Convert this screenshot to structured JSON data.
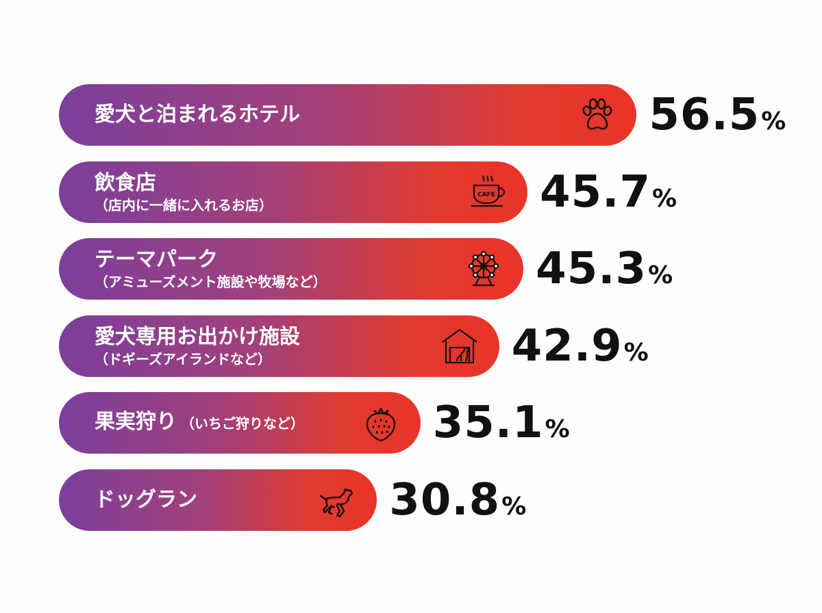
{
  "chart_data": {
    "type": "bar",
    "orientation": "horizontal",
    "unit": "%",
    "categories": [
      {
        "label": "愛犬と泊まれるホテル",
        "sub": "",
        "icon": "paw-icon",
        "value": 56.5
      },
      {
        "label": "飲食店",
        "sub": "（店内に一緒に入れるお店）",
        "icon": "cafe-cup-icon",
        "value": 45.7
      },
      {
        "label": "テーマパーク",
        "sub": "（アミューズメント施設や牧場など）",
        "icon": "ferris-wheel-icon",
        "value": 45.3
      },
      {
        "label": "愛犬専用お出かけ施設",
        "sub": "（ドギーズアイランドなど）",
        "icon": "dog-house-icon",
        "value": 42.9
      },
      {
        "label": "果実狩り",
        "inline_sub": "（いちご狩りなど）",
        "sub": "",
        "icon": "strawberry-icon",
        "value": 35.1
      },
      {
        "label": "ドッグラン",
        "sub": "",
        "icon": "running-dog-icon",
        "value": 30.8
      }
    ],
    "values": [
      56.5,
      45.7,
      45.3,
      42.9,
      35.1,
      30.8
    ],
    "icon_text": "CAFE",
    "colors": {
      "gradient_start": "#7b3f9c",
      "gradient_end": "#ea3328",
      "label": "#ffffff",
      "value": "#111111"
    }
  }
}
